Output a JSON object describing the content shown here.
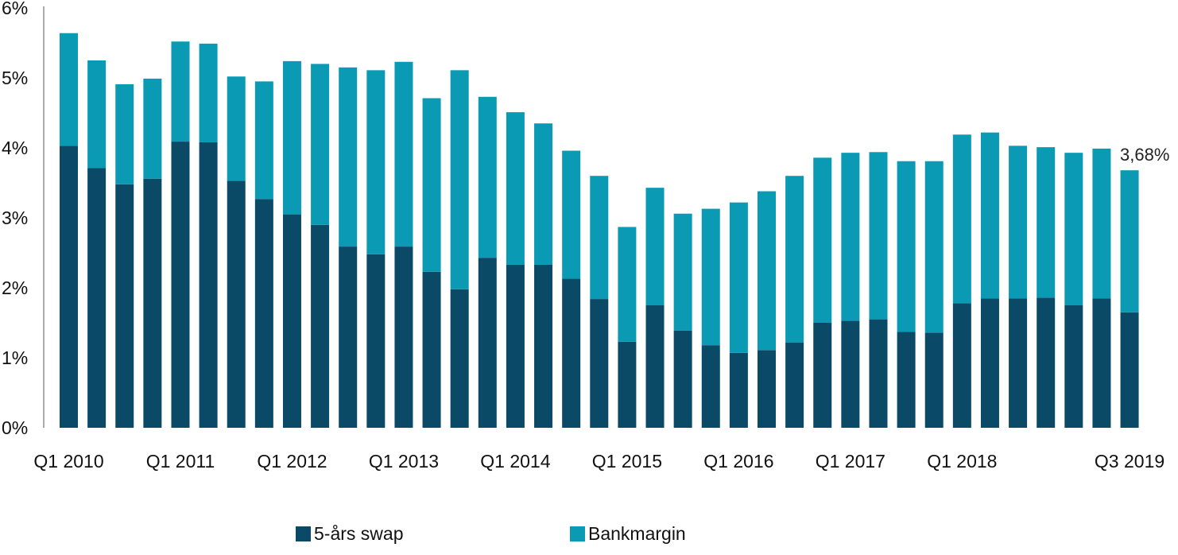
{
  "chart_data": {
    "type": "bar",
    "stacked": true,
    "categories": [
      "Q1 2010",
      "Q2 2010",
      "Q3 2010",
      "Q4 2010",
      "Q1 2011",
      "Q2 2011",
      "Q3 2011",
      "Q4 2011",
      "Q1 2012",
      "Q2 2012",
      "Q3 2012",
      "Q4 2012",
      "Q1 2013",
      "Q2 2013",
      "Q3 2013",
      "Q4 2013",
      "Q1 2014",
      "Q2 2014",
      "Q3 2014",
      "Q4 2014",
      "Q1 2015",
      "Q2 2015",
      "Q3 2015",
      "Q4 2015",
      "Q1 2016",
      "Q2 2016",
      "Q3 2016",
      "Q4 2016",
      "Q1 2017",
      "Q2 2017",
      "Q3 2017",
      "Q4 2017",
      "Q1 2018",
      "Q2 2018",
      "Q3 2018",
      "Q4 2018",
      "Q1 2019",
      "Q2 2019",
      "Q3 2019",
      "Q4 2019"
    ],
    "x_tick_labels": [
      "Q1 2010",
      "Q1 2011",
      "Q1 2012",
      "Q1 2013",
      "Q1 2014",
      "Q1 2015",
      "Q1 2016",
      "Q1 2017",
      "Q1 2018",
      "Q3 2019"
    ],
    "series": [
      {
        "name": "5-års swap",
        "color": "#0a4a66",
        "values": [
          4.03,
          3.71,
          3.48,
          3.56,
          4.09,
          4.08,
          3.53,
          3.27,
          3.05,
          2.9,
          2.59,
          2.48,
          2.59,
          2.23,
          1.98,
          2.43,
          2.33,
          2.33,
          2.13,
          1.84,
          1.23,
          1.75,
          1.39,
          1.18,
          1.07,
          1.11,
          1.22,
          1.5,
          1.53,
          1.55,
          1.37,
          1.36,
          1.78,
          1.85,
          1.85,
          1.86,
          1.75,
          1.85,
          1.65,
          null
        ]
      },
      {
        "name": "Bankmargin",
        "color": "#0a9ab4",
        "values": [
          1.61,
          1.54,
          1.43,
          1.43,
          1.43,
          1.41,
          1.49,
          1.68,
          2.19,
          2.3,
          2.56,
          2.63,
          2.64,
          2.48,
          3.13,
          2.3,
          2.18,
          2.02,
          1.83,
          1.76,
          1.64,
          1.68,
          1.67,
          1.95,
          2.15,
          2.27,
          2.38,
          2.36,
          2.4,
          2.39,
          2.44,
          2.45,
          2.41,
          2.37,
          2.18,
          2.15,
          2.18,
          2.14,
          2.03,
          null
        ]
      }
    ],
    "annotation": {
      "text": "3,68%",
      "category": "Q3 2019"
    },
    "y_tick_labels": [
      "0%",
      "1%",
      "2%",
      "3%",
      "4%",
      "5%",
      "6%"
    ],
    "ylim": [
      0,
      6
    ],
    "grid": false,
    "legend_position": "bottom"
  }
}
